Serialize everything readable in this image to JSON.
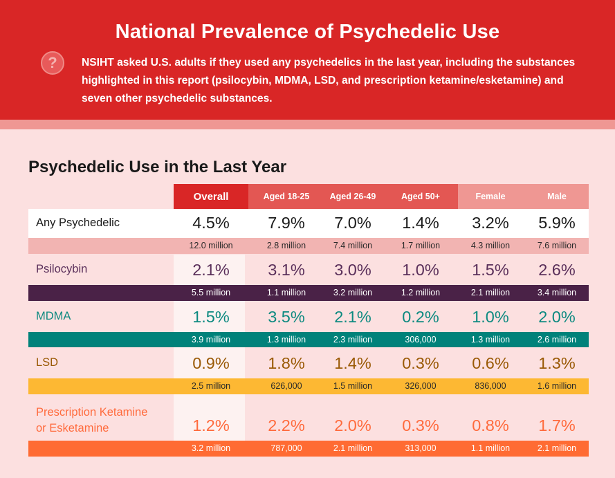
{
  "header": {
    "title": "National Prevalence of Psychedelic Use",
    "intro": "NSIHT asked U.S. adults if they used any psychedelics in the last year, including the substances highlighted in this report (psilocybin, MDMA, LSD, and prescription ketamine/esketamine) and seven other psychedelic substances.",
    "icon": "question-circle-icon"
  },
  "colors": {
    "header_red": "#d92626",
    "any": "#f2b4b2",
    "psilocybin": "#4a2247",
    "mdma": "#00827a",
    "lsd": "#fdb833",
    "ketamine": "#ff6b33"
  },
  "chart_data": {
    "type": "table",
    "title": "Psychedelic Use in the Last Year",
    "columns": [
      "Overall",
      "Aged 18-25",
      "Aged 26-49",
      "Aged 50+",
      "Female",
      "Male"
    ],
    "rows": [
      {
        "label": "Any Psychedelic",
        "percent": [
          "4.5%",
          "7.9%",
          "7.0%",
          "1.4%",
          "3.2%",
          "5.9%"
        ],
        "count": [
          "12.0 million",
          "2.8 million",
          "7.4 million",
          "1.7 million",
          "4.3 million",
          "7.6 million"
        ]
      },
      {
        "label": "Psilocybin",
        "percent": [
          "2.1%",
          "3.1%",
          "3.0%",
          "1.0%",
          "1.5%",
          "2.6%"
        ],
        "count": [
          "5.5 million",
          "1.1 million",
          "3.2 million",
          "1.2 million",
          "2.1 million",
          "3.4 million"
        ]
      },
      {
        "label": "MDMA",
        "percent": [
          "1.5%",
          "3.5%",
          "2.1%",
          "0.2%",
          "1.0%",
          "2.0%"
        ],
        "count": [
          "3.9 million",
          "1.3 million",
          "2.3 million",
          "306,000",
          "1.3 million",
          "2.6 million"
        ]
      },
      {
        "label": "LSD",
        "percent": [
          "0.9%",
          "1.8%",
          "1.4%",
          "0.3%",
          "0.6%",
          "1.3%"
        ],
        "count": [
          "2.5 million",
          "626,000",
          "1.5 million",
          "326,000",
          "836,000",
          "1.6 million"
        ]
      },
      {
        "label": "Prescription Ketamine or Esketamine",
        "label_lines": [
          "Prescription Ketamine",
          "or Esketamine"
        ],
        "percent": [
          "1.2%",
          "2.2%",
          "2.0%",
          "0.3%",
          "0.8%",
          "1.7%"
        ],
        "count": [
          "3.2 million",
          "787,000",
          "2.1 million",
          "313,000",
          "1.1 million",
          "2.1 million"
        ]
      }
    ]
  }
}
